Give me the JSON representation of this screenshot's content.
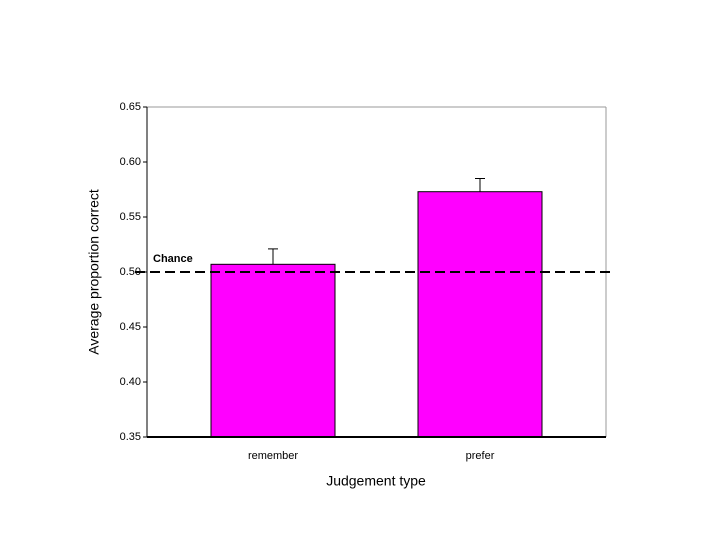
{
  "chart_data": {
    "type": "bar",
    "x_label": "Judgement type",
    "y_label": "Average proportion correct",
    "categories": [
      "remember",
      "prefer"
    ],
    "values": [
      0.507,
      0.573
    ],
    "errors": [
      0.014,
      0.012
    ],
    "color": "#ff00ff",
    "ylim": [
      0.35,
      0.65
    ],
    "yticks": [
      0.35,
      {
        "value": 0.4,
        "label": "0.40"
      },
      0.45,
      {
        "value": 0.5,
        "label": "0.50"
      },
      0.55,
      {
        "value": 0.6,
        "label": "0.60"
      },
      0.65
    ],
    "reference_line": {
      "value": 0.5,
      "label": "Chance"
    }
  }
}
